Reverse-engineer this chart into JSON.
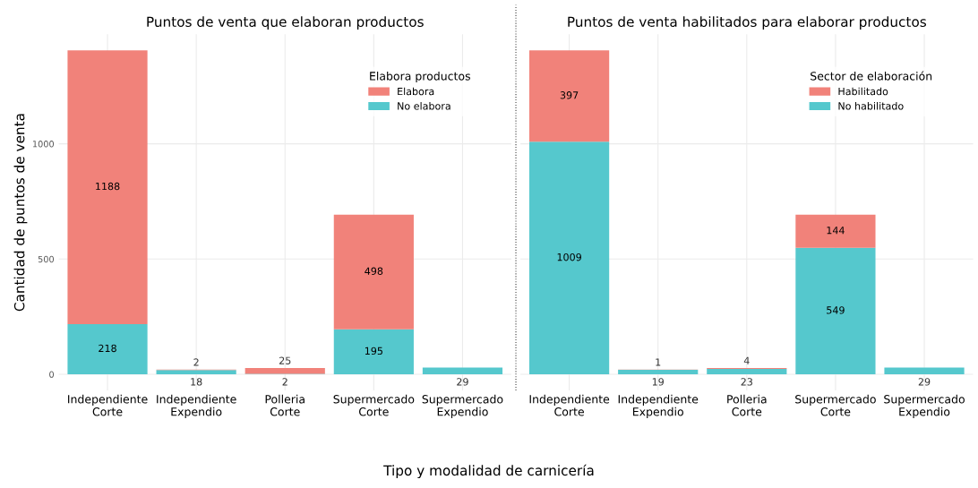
{
  "chart_data": [
    {
      "type": "bar",
      "title": "Puntos de venta que elaboran productos",
      "ylabel": "Cantidad de puntos de venta",
      "xlabel": "Tipo y modalidad de carnicería",
      "legend_title": "Elabora productos",
      "categories": [
        "Independiente\nCorte",
        "Independiente\nExpendio",
        "Polleria\nCorte",
        "Supermercado\nCorte",
        "Supermercado\nExpendio"
      ],
      "stacked": true,
      "data_labels": true,
      "legend": "top right",
      "grid": true,
      "ylim": [
        -70,
        1476
      ],
      "yticks": [
        0,
        500,
        1000
      ],
      "series": [
        {
          "name": "No elabora",
          "color": "#55c8cd",
          "values": [
            218,
            18,
            2,
            195,
            29
          ]
        },
        {
          "name": "Elabora",
          "color": "#f1827a",
          "values": [
            1188,
            2,
            25,
            498,
            null
          ]
        }
      ]
    },
    {
      "type": "bar",
      "title": "Puntos de venta habilitados para elaborar productos",
      "legend_title": "Sector de elaboración",
      "categories": [
        "Independiente\nCorte",
        "Independiente\nExpendio",
        "Polleria\nCorte",
        "Supermercado\nCorte",
        "Supermercado\nExpendio"
      ],
      "stacked": true,
      "data_labels": true,
      "legend": "top right",
      "grid": true,
      "ylim": [
        -70,
        1476
      ],
      "yticks": [
        0,
        500,
        1000
      ],
      "tick_labels": "x",
      "series": [
        {
          "name": "No habilitado",
          "color": "#55c8cd",
          "values": [
            1009,
            19,
            23,
            549,
            29
          ]
        },
        {
          "name": "Habilitado",
          "color": "#f1827a",
          "values": [
            397,
            1,
            4,
            144,
            null
          ]
        }
      ]
    }
  ]
}
